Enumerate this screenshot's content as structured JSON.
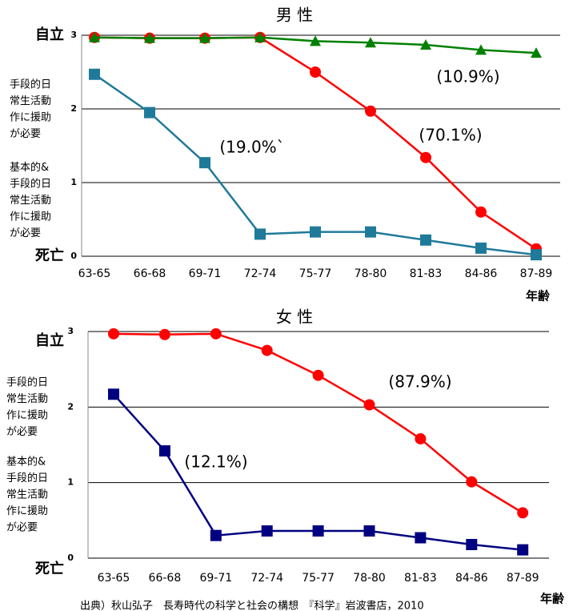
{
  "chart_data": [
    {
      "type": "line",
      "title": "男 性",
      "x_label": "年齢",
      "categories": [
        "63-65",
        "66-68",
        "69-71",
        "72-74",
        "75-77",
        "78-80",
        "81-83",
        "84-86",
        "87-89"
      ],
      "ylim": [
        0,
        3
      ],
      "yticks": [
        0,
        1,
        2,
        3
      ],
      "grid": true,
      "ylabels": [
        {
          "value": 3,
          "label": "自立"
        },
        {
          "value": 2,
          "label": "手段的日常生活動作に援助が必要"
        },
        {
          "value": 1,
          "label": "基本的&手段的日常生活動作に援助が必要"
        },
        {
          "value": 0,
          "label": "死亡"
        }
      ],
      "series": [
        {
          "color": "#ff0000",
          "marker": "circle",
          "values": [
            2.97,
            2.96,
            2.96,
            2.97,
            2.5,
            1.97,
            1.34,
            0.6,
            0.1
          ]
        },
        {
          "color": "#008000",
          "marker": "triangle",
          "values": [
            2.97,
            2.96,
            2.96,
            2.97,
            2.92,
            2.9,
            2.87,
            2.8,
            2.76
          ]
        },
        {
          "color": "#1f7a99",
          "marker": "square",
          "values": [
            2.47,
            1.95,
            1.27,
            0.3,
            0.33,
            0.33,
            0.22,
            0.11,
            0.02
          ]
        }
      ],
      "annotations": [
        "(10.9%)",
        "(70.1%)",
        "(19.0%`"
      ]
    },
    {
      "type": "line",
      "title": "女 性",
      "x_label": "年齢",
      "categories": [
        "63-65",
        "66-68",
        "69-71",
        "72-74",
        "75-77",
        "78-80",
        "81-83",
        "84-86",
        "87-89"
      ],
      "ylim": [
        0,
        3
      ],
      "yticks": [
        0,
        1,
        2,
        3
      ],
      "grid": true,
      "ylabels": [
        {
          "value": 3,
          "label": "自立"
        },
        {
          "value": 2,
          "label": "手段的日常生活動作に援助が必要"
        },
        {
          "value": 1,
          "label": "基本的&手段的日常生活動作に援助が必要"
        },
        {
          "value": 0,
          "label": "死亡"
        }
      ],
      "series": [
        {
          "color": "#ff0000",
          "marker": "circle",
          "values": [
            2.97,
            2.96,
            2.97,
            2.75,
            2.42,
            2.03,
            1.58,
            1.01,
            0.6
          ]
        },
        {
          "color": "#000080",
          "marker": "square",
          "values": [
            2.17,
            1.42,
            0.3,
            0.36,
            0.36,
            0.36,
            0.27,
            0.18,
            0.11
          ]
        }
      ],
      "annotations": [
        "(87.9%)",
        "(12.1%)"
      ]
    }
  ],
  "source": "出典）秋山弘子　長寿時代の科学と社会の構想　『科学』岩波書店，2010"
}
